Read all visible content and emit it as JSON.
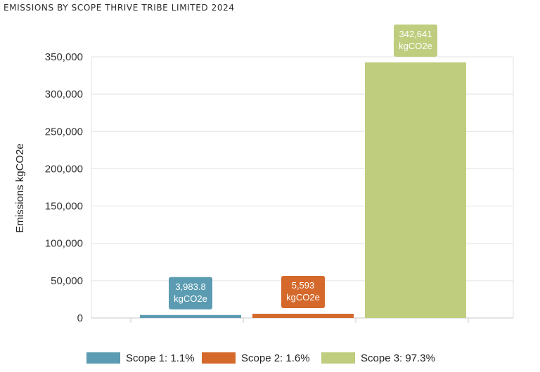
{
  "chart_data": {
    "type": "bar",
    "title": "EMISSIONS BY SCOPE THRIVE TRIBE LIMITED 2024",
    "xlabel": "",
    "ylabel": "Emissions kgCO2e",
    "ylim": [
      0,
      350000
    ],
    "yticks": [
      0,
      50000,
      100000,
      150000,
      200000,
      250000,
      300000,
      350000
    ],
    "ytick_labels": [
      "0",
      "50,000",
      "100,000",
      "150,000",
      "200,000",
      "250,000",
      "300,000",
      "350,000"
    ],
    "grid": true,
    "categories": [
      "Scope 1",
      "Scope 2",
      "Scope 3"
    ],
    "values": [
      3983.8,
      5593,
      342641
    ],
    "colors": [
      "#5b9cb2",
      "#d5692b",
      "#bfcd7e"
    ],
    "data_labels": [
      [
        "3,983.8",
        "kgCO2e"
      ],
      [
        "5,593",
        "kgCO2e"
      ],
      [
        "342,641",
        "kgCO2e"
      ]
    ],
    "legend": {
      "position": "bottom",
      "entries": [
        "Scope 1: 1.1%",
        "Scope 2: 1.6%",
        "Scope 3: 97.3%"
      ]
    }
  }
}
